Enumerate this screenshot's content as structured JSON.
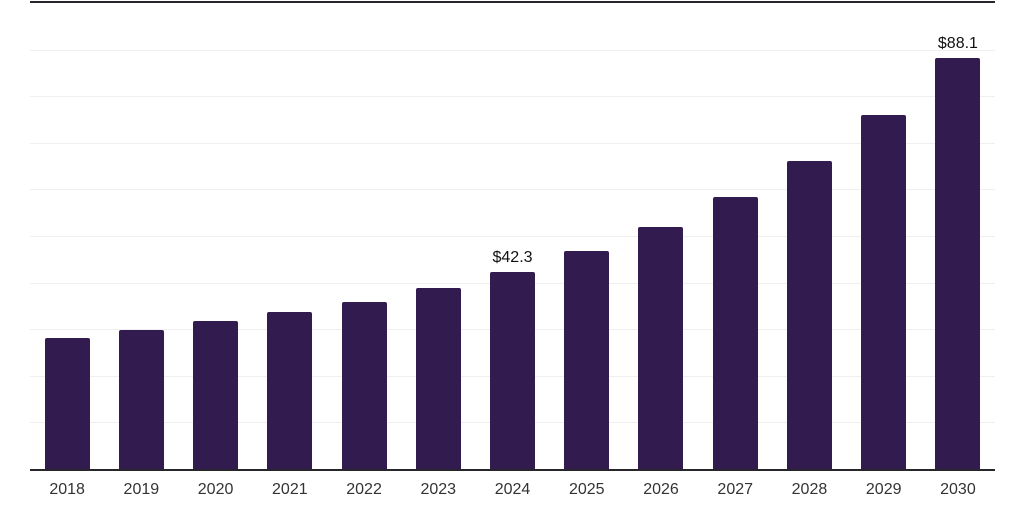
{
  "chart_data": {
    "type": "bar",
    "title": "",
    "xlabel": "",
    "ylabel": "",
    "categories": [
      "2018",
      "2019",
      "2020",
      "2021",
      "2022",
      "2023",
      "2024",
      "2025",
      "2026",
      "2027",
      "2028",
      "2029",
      "2030"
    ],
    "values": [
      28.1,
      29.8,
      31.7,
      33.6,
      35.9,
      38.8,
      42.3,
      46.8,
      51.9,
      58.3,
      66.2,
      75.9,
      88.1
    ],
    "data_labels": [
      "",
      "",
      "",
      "",
      "",
      "",
      "$42.3",
      "",
      "",
      "",
      "",
      "",
      "$88.1"
    ],
    "ylim": [
      0,
      100
    ],
    "gridline_interval": 10,
    "grid": true,
    "legend": "none",
    "colors": {
      "bar": "#321b4e",
      "axis_line": "#26262b",
      "gridline": "#efefef",
      "tick_label": "#333333",
      "value_label": "#111111",
      "background": "#ffffff"
    }
  }
}
